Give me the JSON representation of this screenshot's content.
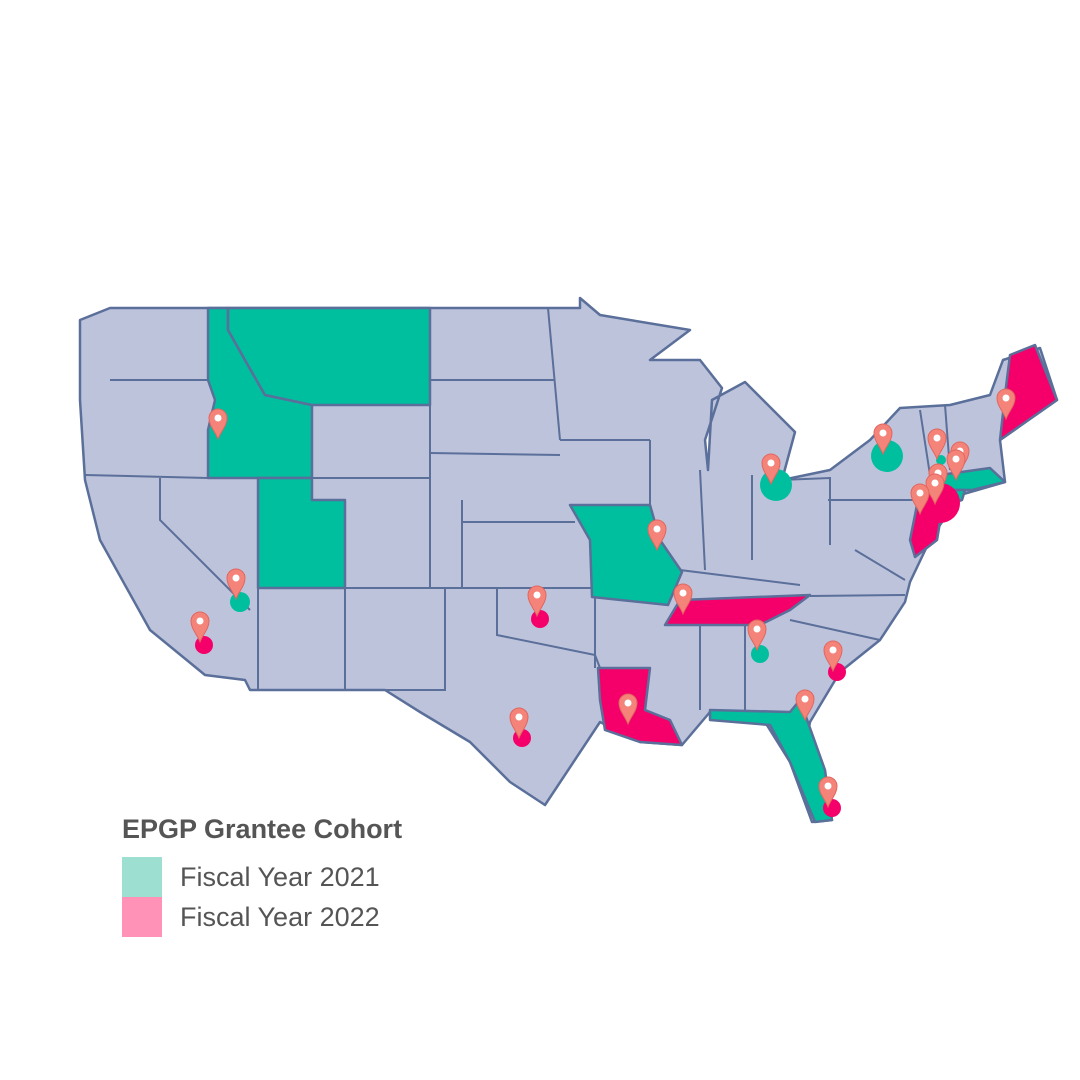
{
  "legend": {
    "title": "EPGP Grantee Cohort",
    "items": [
      {
        "label": "Fiscal Year 2021",
        "color": "#9de0d2"
      },
      {
        "label": "Fiscal Year 2022",
        "color": "#ff92b6"
      }
    ]
  },
  "colors": {
    "base_state": "#bec3dc",
    "border": "#5a6f99",
    "fy2021": "#00bf9f",
    "fy2022": "#f5006a",
    "marker": "#f4847a"
  },
  "highlighted_states": {
    "fy2021": [
      "Idaho",
      "Montana",
      "Utah",
      "Missouri",
      "Florida",
      "Massachusetts",
      "Connecticut"
    ],
    "fy2022": [
      "Maine",
      "New Jersey",
      "Tennessee",
      "Louisiana"
    ]
  },
  "icons": {
    "marker": "map-pin-icon"
  }
}
